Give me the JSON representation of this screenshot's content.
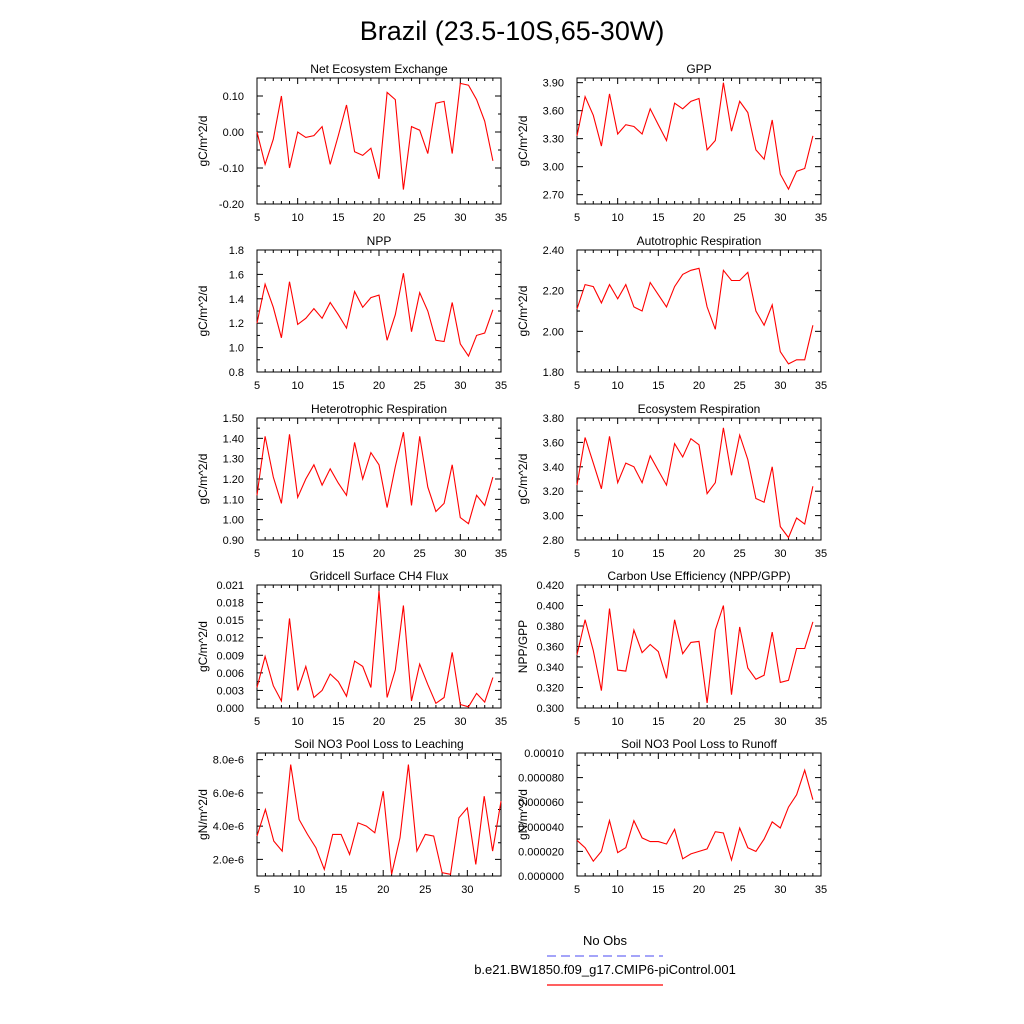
{
  "figure": {
    "title": "Brazil (23.5-10S,65-30W)"
  },
  "legend": {
    "entries": [
      {
        "label": "No Obs",
        "color": "#6d6df5",
        "dash": true
      },
      {
        "label": "b.e21.BW1850.f09_g17.CMIP6-piControl.001",
        "color": "#ff0000",
        "dash": false
      }
    ]
  },
  "series_color": "#ff0000",
  "chart_data": [
    {
      "type": "line",
      "title": "Net Ecosystem Exchange",
      "ylabel": "gC/m^2/d",
      "xlim": [
        5,
        35
      ],
      "ylim": [
        -0.2,
        0.15
      ],
      "xticks": [
        5,
        10,
        15,
        20,
        25,
        30,
        35
      ],
      "yticks": [
        -0.2,
        -0.1,
        0.0,
        0.1
      ],
      "ytick_labels": [
        "-0.20",
        "-0.10",
        "0.00",
        "0.10"
      ],
      "x": [
        5,
        6,
        7,
        8,
        9,
        10,
        11,
        12,
        13,
        14,
        15,
        16,
        17,
        18,
        19,
        20,
        21,
        22,
        23,
        24,
        25,
        26,
        27,
        28,
        29,
        30,
        31,
        32,
        33,
        34
      ],
      "values": [
        0.0,
        -0.09,
        -0.02,
        0.1,
        -0.1,
        0.0,
        -0.015,
        -0.01,
        0.015,
        -0.09,
        -0.01,
        0.075,
        -0.055,
        -0.065,
        -0.045,
        -0.13,
        0.11,
        0.09,
        -0.16,
        0.015,
        0.005,
        -0.06,
        0.08,
        0.085,
        -0.06,
        0.135,
        0.13,
        0.09,
        0.03,
        -0.08
      ]
    },
    {
      "type": "line",
      "title": "GPP",
      "ylabel": "gC/m^2/d",
      "xlim": [
        5,
        35
      ],
      "ylim": [
        2.6,
        3.95
      ],
      "xticks": [
        5,
        10,
        15,
        20,
        25,
        30,
        35
      ],
      "yticks": [
        2.7,
        3.0,
        3.3,
        3.6,
        3.9
      ],
      "ytick_labels": [
        "2.70",
        "3.00",
        "3.30",
        "3.60",
        "3.90"
      ],
      "x": [
        5,
        6,
        7,
        8,
        9,
        10,
        11,
        12,
        13,
        14,
        15,
        16,
        17,
        18,
        19,
        20,
        21,
        22,
        23,
        24,
        25,
        26,
        27,
        28,
        29,
        30,
        31,
        32,
        33,
        34
      ],
      "values": [
        3.33,
        3.75,
        3.55,
        3.22,
        3.78,
        3.35,
        3.45,
        3.43,
        3.35,
        3.62,
        3.45,
        3.28,
        3.68,
        3.62,
        3.7,
        3.73,
        3.18,
        3.28,
        3.9,
        3.38,
        3.7,
        3.58,
        3.18,
        3.08,
        3.5,
        2.92,
        2.76,
        2.95,
        2.98,
        3.33
      ]
    },
    {
      "type": "line",
      "title": "NPP",
      "ylabel": "gC/m^2/d",
      "xlim": [
        5,
        35
      ],
      "ylim": [
        0.8,
        1.8
      ],
      "xticks": [
        5,
        10,
        15,
        20,
        25,
        30,
        35
      ],
      "yticks": [
        0.8,
        1.0,
        1.2,
        1.4,
        1.6,
        1.8
      ],
      "ytick_labels": [
        "0.8",
        "1.0",
        "1.2",
        "1.4",
        "1.6",
        "1.8"
      ],
      "x": [
        5,
        6,
        7,
        8,
        9,
        10,
        11,
        12,
        13,
        14,
        15,
        16,
        17,
        18,
        19,
        20,
        21,
        22,
        23,
        24,
        25,
        26,
        27,
        28,
        29,
        30,
        31,
        32,
        33,
        34
      ],
      "values": [
        1.2,
        1.52,
        1.33,
        1.08,
        1.54,
        1.19,
        1.24,
        1.32,
        1.24,
        1.37,
        1.27,
        1.16,
        1.46,
        1.33,
        1.41,
        1.43,
        1.06,
        1.27,
        1.61,
        1.13,
        1.45,
        1.3,
        1.06,
        1.05,
        1.37,
        1.03,
        0.93,
        1.1,
        1.12,
        1.31
      ]
    },
    {
      "type": "line",
      "title": "Autotrophic Respiration",
      "ylabel": "gC/m^2/d",
      "xlim": [
        5,
        35
      ],
      "ylim": [
        1.8,
        2.4
      ],
      "xticks": [
        5,
        10,
        15,
        20,
        25,
        30,
        35
      ],
      "yticks": [
        1.8,
        2.0,
        2.2,
        2.4
      ],
      "ytick_labels": [
        "1.80",
        "2.00",
        "2.20",
        "2.40"
      ],
      "x": [
        5,
        6,
        7,
        8,
        9,
        10,
        11,
        12,
        13,
        14,
        15,
        16,
        17,
        18,
        19,
        20,
        21,
        22,
        23,
        24,
        25,
        26,
        27,
        28,
        29,
        30,
        31,
        32,
        33,
        34
      ],
      "values": [
        2.11,
        2.23,
        2.22,
        2.14,
        2.23,
        2.16,
        2.23,
        2.12,
        2.1,
        2.24,
        2.18,
        2.12,
        2.22,
        2.28,
        2.3,
        2.31,
        2.12,
        2.01,
        2.3,
        2.25,
        2.25,
        2.29,
        2.1,
        2.03,
        2.13,
        1.9,
        1.84,
        1.86,
        1.86,
        2.03
      ]
    },
    {
      "type": "line",
      "title": "Heterotrophic Respiration",
      "ylabel": "gC/m^2/d",
      "xlim": [
        5,
        35
      ],
      "ylim": [
        0.9,
        1.5
      ],
      "xticks": [
        5,
        10,
        15,
        20,
        25,
        30,
        35
      ],
      "yticks": [
        0.9,
        1.0,
        1.1,
        1.2,
        1.3,
        1.4,
        1.5
      ],
      "ytick_labels": [
        "0.90",
        "1.00",
        "1.10",
        "1.20",
        "1.30",
        "1.40",
        "1.50"
      ],
      "x": [
        5,
        6,
        7,
        8,
        9,
        10,
        11,
        12,
        13,
        14,
        15,
        16,
        17,
        18,
        19,
        20,
        21,
        22,
        23,
        24,
        25,
        26,
        27,
        28,
        29,
        30,
        31,
        32,
        33,
        34
      ],
      "values": [
        1.12,
        1.41,
        1.21,
        1.08,
        1.42,
        1.11,
        1.2,
        1.27,
        1.17,
        1.25,
        1.18,
        1.12,
        1.38,
        1.2,
        1.33,
        1.27,
        1.06,
        1.26,
        1.43,
        1.07,
        1.41,
        1.16,
        1.04,
        1.08,
        1.27,
        1.01,
        0.98,
        1.12,
        1.07,
        1.21
      ]
    },
    {
      "type": "line",
      "title": "Ecosystem Respiration",
      "ylabel": "gC/m^2/d",
      "xlim": [
        5,
        35
      ],
      "ylim": [
        2.8,
        3.8
      ],
      "xticks": [
        5,
        10,
        15,
        20,
        25,
        30,
        35
      ],
      "yticks": [
        2.8,
        3.0,
        3.2,
        3.4,
        3.6,
        3.8
      ],
      "ytick_labels": [
        "2.80",
        "3.00",
        "3.20",
        "3.40",
        "3.60",
        "3.80"
      ],
      "x": [
        5,
        6,
        7,
        8,
        9,
        10,
        11,
        12,
        13,
        14,
        15,
        16,
        17,
        18,
        19,
        20,
        21,
        22,
        23,
        24,
        25,
        26,
        27,
        28,
        29,
        30,
        31,
        32,
        33,
        34
      ],
      "values": [
        3.25,
        3.64,
        3.43,
        3.22,
        3.65,
        3.27,
        3.43,
        3.4,
        3.27,
        3.49,
        3.37,
        3.25,
        3.59,
        3.48,
        3.63,
        3.58,
        3.18,
        3.27,
        3.72,
        3.33,
        3.66,
        3.46,
        3.14,
        3.11,
        3.4,
        2.91,
        2.82,
        2.98,
        2.93,
        3.24
      ]
    },
    {
      "type": "line",
      "title": "Gridcell Surface CH4 Flux",
      "ylabel": "gC/m^2/d",
      "xlim": [
        5,
        35
      ],
      "ylim": [
        0.0,
        0.021
      ],
      "xticks": [
        5,
        10,
        15,
        20,
        25,
        30,
        35
      ],
      "yticks": [
        0.0,
        0.003,
        0.006,
        0.009,
        0.012,
        0.015,
        0.018,
        0.021
      ],
      "ytick_labels": [
        "0.000",
        "0.003",
        "0.006",
        "0.009",
        "0.012",
        "0.015",
        "0.018",
        "0.021"
      ],
      "x": [
        5,
        6,
        7,
        8,
        9,
        10,
        11,
        12,
        13,
        14,
        15,
        16,
        17,
        18,
        19,
        20,
        21,
        22,
        23,
        24,
        25,
        26,
        27,
        28,
        29,
        30,
        31,
        32,
        33,
        34
      ],
      "values": [
        0.0035,
        0.0088,
        0.0038,
        0.0012,
        0.0153,
        0.003,
        0.0071,
        0.0018,
        0.003,
        0.0058,
        0.0045,
        0.002,
        0.008,
        0.0071,
        0.0035,
        0.02,
        0.0018,
        0.0065,
        0.0175,
        0.0012,
        0.0075,
        0.004,
        0.0008,
        0.0018,
        0.0095,
        0.0006,
        0.0002,
        0.0025,
        0.001,
        0.0052
      ]
    },
    {
      "type": "line",
      "title": "Carbon Use Efficiency (NPP/GPP)",
      "ylabel": "NPP/GPP",
      "xlim": [
        5,
        35
      ],
      "ylim": [
        0.3,
        0.42
      ],
      "xticks": [
        5,
        10,
        15,
        20,
        25,
        30,
        35
      ],
      "yticks": [
        0.3,
        0.32,
        0.34,
        0.36,
        0.38,
        0.4,
        0.42
      ],
      "ytick_labels": [
        "0.300",
        "0.320",
        "0.340",
        "0.360",
        "0.380",
        "0.400",
        "0.420"
      ],
      "x": [
        5,
        6,
        7,
        8,
        9,
        10,
        11,
        12,
        13,
        14,
        15,
        16,
        17,
        18,
        19,
        20,
        21,
        22,
        23,
        24,
        25,
        26,
        27,
        28,
        29,
        30,
        31,
        32,
        33,
        34
      ],
      "values": [
        0.352,
        0.386,
        0.356,
        0.317,
        0.397,
        0.337,
        0.336,
        0.376,
        0.354,
        0.362,
        0.355,
        0.329,
        0.386,
        0.353,
        0.364,
        0.365,
        0.305,
        0.376,
        0.4,
        0.313,
        0.379,
        0.339,
        0.328,
        0.332,
        0.374,
        0.325,
        0.327,
        0.358,
        0.358,
        0.384
      ]
    },
    {
      "type": "line",
      "title": "Soil NO3 Pool Loss to Leaching",
      "ylabel": "gN/m^2/d",
      "xlim": [
        5,
        34
      ],
      "ylim": [
        1e-06,
        8.4e-06
      ],
      "xticks": [
        5,
        10,
        15,
        20,
        25,
        30
      ],
      "yticks": [
        2e-06,
        4e-06,
        6e-06,
        8e-06
      ],
      "ytick_labels": [
        "2.0e-6",
        "4.0e-6",
        "6.0e-6",
        "8.0e-6"
      ],
      "x": [
        5,
        6,
        7,
        8,
        9,
        10,
        11,
        12,
        13,
        14,
        15,
        16,
        17,
        18,
        19,
        20,
        21,
        22,
        23,
        24,
        25,
        26,
        27,
        28,
        29,
        30,
        31,
        32,
        33,
        34
      ],
      "values": [
        3.4e-06,
        5e-06,
        3.1e-06,
        2.5e-06,
        7.7e-06,
        4.4e-06,
        3.5e-06,
        2.7e-06,
        1.4e-06,
        3.5e-06,
        3.5e-06,
        2.3e-06,
        4.2e-06,
        4e-06,
        3.6e-06,
        6.1e-06,
        1.1e-06,
        3.3e-06,
        7.7e-06,
        2.5e-06,
        3.5e-06,
        3.4e-06,
        1.2e-06,
        1.1e-06,
        4.5e-06,
        5.1e-06,
        1.7e-06,
        5.8e-06,
        2.5e-06,
        5.5e-06
      ]
    },
    {
      "type": "line",
      "title": "Soil NO3 Pool Loss to Runoff",
      "ylabel": "gN/m^2/d",
      "xlim": [
        5,
        35
      ],
      "ylim": [
        0.0,
        0.0001
      ],
      "xticks": [
        5,
        10,
        15,
        20,
        25,
        30,
        35
      ],
      "yticks": [
        0.0,
        2e-05,
        4e-05,
        6e-05,
        8e-05,
        0.0001
      ],
      "ytick_labels": [
        "0.000000",
        "0.000020",
        "0.000040",
        "0.000060",
        "0.000080",
        "0.00010"
      ],
      "x": [
        5,
        6,
        7,
        8,
        9,
        10,
        11,
        12,
        13,
        14,
        15,
        16,
        17,
        18,
        19,
        20,
        21,
        22,
        23,
        24,
        25,
        26,
        27,
        28,
        29,
        30,
        31,
        32,
        33,
        34
      ],
      "values": [
        2.9e-05,
        2.3e-05,
        1.2e-05,
        2e-05,
        4.5e-05,
        1.9e-05,
        2.3e-05,
        4.5e-05,
        3.1e-05,
        2.8e-05,
        2.8e-05,
        2.6e-05,
        3.8e-05,
        1.4e-05,
        1.8e-05,
        2e-05,
        2.2e-05,
        3.6e-05,
        3.5e-05,
        1.3e-05,
        3.9e-05,
        2.3e-05,
        2e-05,
        3e-05,
        4.4e-05,
        3.9e-05,
        5.6e-05,
        6.6e-05,
        8.6e-05,
        6.2e-05
      ]
    }
  ]
}
